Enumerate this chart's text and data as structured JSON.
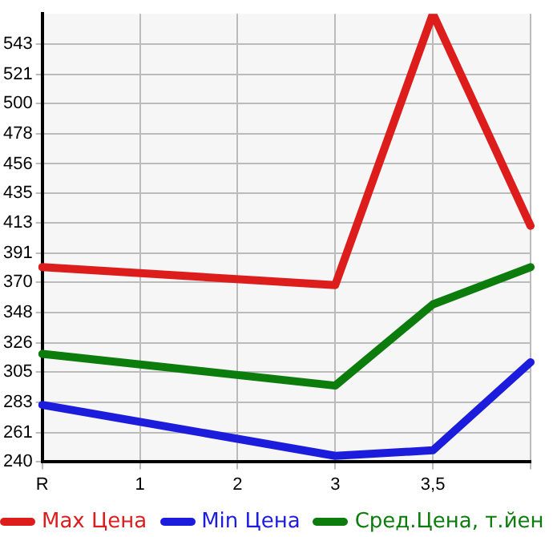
{
  "chart_data": {
    "type": "line",
    "categories": [
      "R",
      "1",
      "2",
      "3",
      "3,5",
      null
    ],
    "series": [
      {
        "name": "Max Цена",
        "color": "#dd1c1c",
        "values": [
          381,
          null,
          null,
          368,
          565,
          411
        ]
      },
      {
        "name": "Min Цена",
        "color": "#1c1cdd",
        "values": [
          281,
          null,
          null,
          244,
          248,
          312
        ]
      },
      {
        "name": "Сред.Цена, т.йен",
        "color": "#0c7c0c",
        "values": [
          318,
          null,
          null,
          295,
          354,
          381
        ]
      }
    ],
    "ylim": [
      240,
      565
    ],
    "yticks": [
      240,
      261,
      283,
      305,
      326,
      348,
      370,
      391,
      413,
      435,
      456,
      478,
      500,
      521,
      543
    ],
    "grid": true,
    "legend": "bottom",
    "marker": "none",
    "line_style": "solid"
  }
}
